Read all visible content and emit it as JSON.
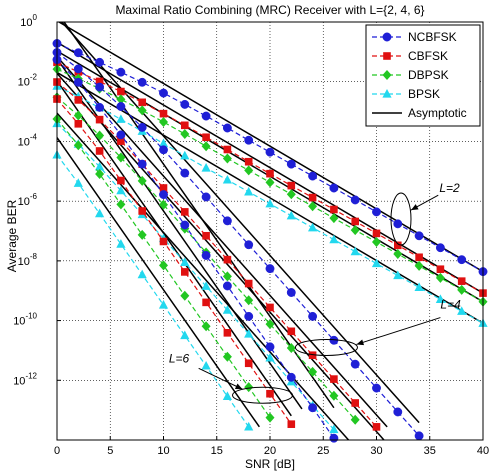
{
  "chart_data": {
    "type": "line",
    "title": "Maximal Ratio Combining (MRC) Receiver with L={2, 4, 6}",
    "xlabel": "SNR [dB]",
    "ylabel": "Average BER",
    "xlim": [
      0,
      40
    ],
    "ylim_log10": [
      -14,
      0
    ],
    "y_scale": "log",
    "grid": true,
    "x_ticks": [
      0,
      5,
      10,
      15,
      20,
      25,
      30,
      35,
      40
    ],
    "x_tick_labels": [
      "0",
      "5",
      "10",
      "15",
      "20",
      "25",
      "30",
      "35",
      "40"
    ],
    "y_tick_exponents": [
      0,
      -2,
      -4,
      -6,
      -8,
      -10,
      -12
    ],
    "legend_position": "top-right",
    "legend": [
      "NCBFSK",
      "CBFSK",
      "DBPSK",
      "BPSK",
      "Asymptotic"
    ],
    "styles": {
      "NCBFSK": {
        "color": "#1f1fd6",
        "marker": "circle"
      },
      "CBFSK": {
        "color": "#e01010",
        "marker": "square"
      },
      "DBPSK": {
        "color": "#22c722",
        "marker": "diamond"
      },
      "BPSK": {
        "color": "#22d8ee",
        "marker": "triangle"
      },
      "Asymptotic": {
        "color": "#000000"
      }
    },
    "x": [
      0,
      2,
      4,
      6,
      8,
      10,
      12,
      14,
      16,
      18,
      20,
      22,
      24,
      26,
      28,
      30,
      32,
      34,
      36,
      38,
      40
    ],
    "series": [
      {
        "name": "NCBFSK",
        "L": 2,
        "log10_ber": [
          -0.72,
          -1.03,
          -1.35,
          -1.68,
          -2.02,
          -2.38,
          -2.76,
          -3.15,
          -3.55,
          -3.96,
          -4.36,
          -4.76,
          -5.16,
          -5.56,
          -5.96,
          -6.36,
          -6.76,
          -7.16,
          -7.56,
          -7.96,
          -8.36
        ]
      },
      {
        "name": "CBFSK",
        "L": 2,
        "log10_ber": [
          -1.35,
          -1.67,
          -1.99,
          -2.33,
          -2.69,
          -3.07,
          -3.46,
          -3.86,
          -4.27,
          -4.68,
          -5.08,
          -5.48,
          -5.88,
          -6.28,
          -6.68,
          -7.08,
          -7.48,
          -7.88,
          -8.28,
          -8.68,
          -9.08
        ]
      },
      {
        "name": "DBPSK",
        "L": 2,
        "log10_ber": [
          -1.58,
          -1.9,
          -2.23,
          -2.59,
          -2.96,
          -3.35,
          -3.75,
          -4.16,
          -4.57,
          -4.97,
          -5.37,
          -5.77,
          -6.17,
          -6.57,
          -6.97,
          -7.37,
          -7.77,
          -8.17,
          -8.57,
          -8.97,
          -9.37
        ]
      },
      {
        "name": "BPSK",
        "L": 2,
        "log10_ber": [
          -2.15,
          -2.5,
          -2.87,
          -3.26,
          -3.66,
          -4.07,
          -4.48,
          -4.89,
          -5.29,
          -5.69,
          -6.09,
          -6.49,
          -6.89,
          -7.29,
          -7.69,
          -8.09,
          -8.49,
          -8.89,
          -9.29,
          -9.69,
          -10.09
        ]
      },
      {
        "name": "NCBFSK",
        "L": 4,
        "log10_ber": [
          -1.02,
          -1.57,
          -2.18,
          -2.83,
          -3.53,
          -4.28,
          -5.06,
          -5.86,
          -6.66,
          -7.46,
          -8.26,
          -9.06,
          -9.86,
          -10.66,
          -11.46,
          -12.26,
          -13.06,
          -13.86
        ]
      },
      {
        "name": "CBFSK",
        "L": 4,
        "log10_ber": [
          -2.01,
          -2.61,
          -3.27,
          -3.99,
          -4.76,
          -5.56,
          -6.36,
          -7.16,
          -7.96,
          -8.76,
          -9.56,
          -10.36,
          -11.16,
          -11.96,
          -12.76,
          -13.56
        ]
      },
      {
        "name": "DBPSK",
        "L": 4,
        "log10_ber": [
          -2.52,
          -3.13,
          -3.8,
          -4.54,
          -5.32,
          -6.12,
          -6.92,
          -7.72,
          -8.52,
          -9.32,
          -10.12,
          -10.92,
          -11.72,
          -12.52,
          -13.32
        ]
      },
      {
        "name": "BPSK",
        "L": 4,
        "log10_ber": [
          -3.4,
          -4.09,
          -4.85,
          -5.65,
          -6.45,
          -7.25,
          -8.05,
          -8.85,
          -9.65,
          -10.45,
          -11.25,
          -12.05,
          -12.85,
          -13.65
        ]
      },
      {
        "name": "NCBFSK",
        "L": 6,
        "log10_ber": [
          -1.26,
          -2.02,
          -2.86,
          -3.78,
          -4.76,
          -5.78,
          -6.8,
          -7.82,
          -8.84,
          -9.86,
          -10.88,
          -11.9,
          -12.92,
          -13.94
        ]
      },
      {
        "name": "CBFSK",
        "L": 6,
        "log10_ber": [
          -2.58,
          -3.41,
          -4.32,
          -5.31,
          -6.33,
          -7.35,
          -8.37,
          -9.39,
          -10.41,
          -11.43,
          -12.45,
          -13.47
        ]
      },
      {
        "name": "DBPSK",
        "L": 6,
        "log10_ber": [
          -3.25,
          -4.13,
          -5.09,
          -6.11,
          -7.13,
          -8.15,
          -9.17,
          -10.19,
          -11.21,
          -12.23,
          -13.25
        ]
      },
      {
        "name": "BPSK",
        "L": 6,
        "log10_ber": [
          -4.45,
          -5.4,
          -6.42,
          -7.44,
          -8.46,
          -9.48,
          -10.5,
          -11.52,
          -12.54,
          -13.56
        ]
      }
    ],
    "asymptotic": [
      {
        "L": 2,
        "lines": [
          {
            "x": [
              0,
              40
            ],
            "log10_ber": [
              0.04,
              -8.36
            ]
          },
          {
            "x": [
              0,
              40
            ],
            "log10_ber": [
              -0.68,
              -9.08
            ]
          },
          {
            "x": [
              0,
              40
            ],
            "log10_ber": [
              -0.97,
              -9.37
            ]
          },
          {
            "x": [
              0,
              40
            ],
            "log10_ber": [
              -1.69,
              -10.09
            ]
          }
        ]
      },
      {
        "L": 4,
        "lines": [
          {
            "x": [
              0,
              34
            ],
            "log10_ber": [
              0.18,
              -13.42
            ]
          },
          {
            "x": [
              0,
              31
            ],
            "log10_ber": [
              -1.16,
              -13.56
            ]
          },
          {
            "x": [
              0,
              31
            ],
            "log10_ber": [
              -1.72,
              -14.12
            ]
          },
          {
            "x": [
              0,
              28
            ],
            "log10_ber": [
              -3.05,
              -14.25
            ]
          }
        ]
      },
      {
        "L": 6,
        "lines": [
          {
            "x": [
              0,
              26
            ],
            "log10_ber": [
              0.34,
              -12.92
            ]
          },
          {
            "x": [
              0,
              23
            ],
            "log10_ber": [
              -1.23,
              -12.96
            ]
          },
          {
            "x": [
              0,
              22
            ],
            "log10_ber": [
              -1.97,
              -13.19
            ]
          },
          {
            "x": [
              0,
              19
            ],
            "log10_ber": [
              -3.87,
              -13.56
            ]
          }
        ]
      }
    ],
    "annotations": [
      {
        "text": "L=2",
        "x": 35,
        "log10_ber": -6.3
      },
      {
        "text": "L=4",
        "x": 25,
        "log10_ber": -10.3
      },
      {
        "text": "L=6",
        "x": 21,
        "log10_ber": -12.4
      }
    ]
  }
}
